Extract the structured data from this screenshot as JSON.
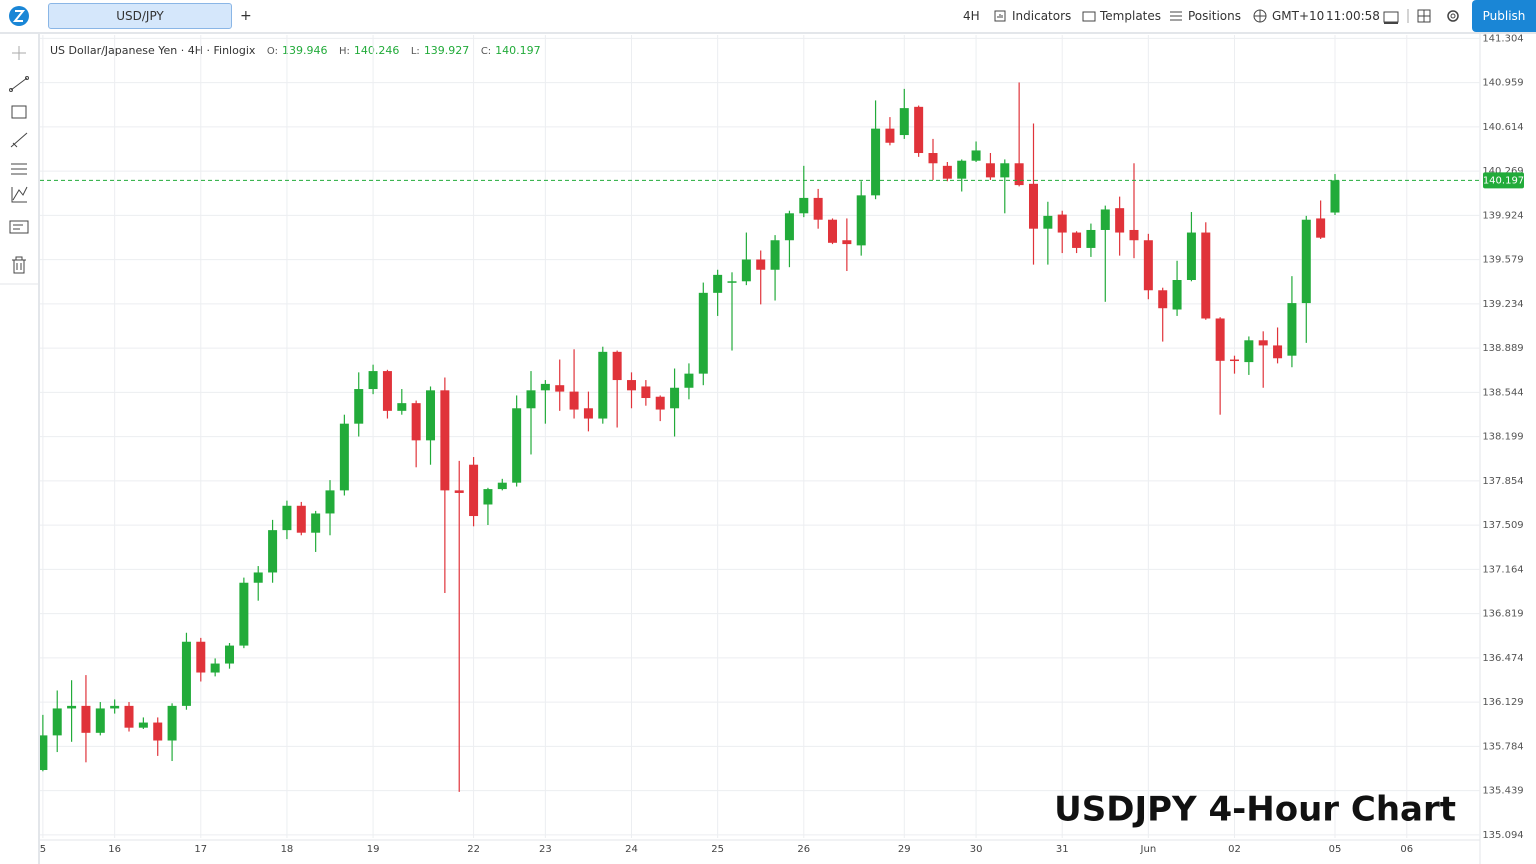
{
  "toolbar": {
    "tab": "USD/JPY",
    "add": "+",
    "interval": "4H",
    "indicators": "Indicators",
    "templates": "Templates",
    "positions": "Positions",
    "timezone": "GMT+10",
    "time": "11:00:58",
    "publish": "Publish"
  },
  "chart_data": {
    "type": "candlestick",
    "title": "US Dollar/Japanese Yen · 4H · Finlogix",
    "ohlc_labels": [
      "O:",
      "H:",
      "L:",
      "C:"
    ],
    "annotation": "USDJPY 4-Hour Chart",
    "up_color": "#22ab3a",
    "down_color": "#e0333a",
    "open": [
      135.6,
      135.87,
      136.08,
      136.1,
      135.89,
      136.08,
      136.1,
      135.93,
      135.97,
      135.83,
      136.1,
      136.6,
      136.36,
      136.43,
      136.57,
      137.06,
      137.14,
      137.47,
      137.66,
      137.45,
      137.6,
      137.78,
      138.3,
      138.57,
      138.71,
      138.4,
      138.46,
      138.17,
      138.56,
      137.78,
      137.98,
      137.67,
      137.79,
      137.84,
      138.42,
      138.56,
      138.6,
      138.55,
      138.42,
      138.34,
      138.86,
      138.64,
      138.59,
      138.51,
      138.42,
      138.58,
      138.69,
      139.32,
      139.4,
      139.41,
      139.58,
      139.5,
      139.73,
      139.94,
      140.06,
      139.89,
      139.73,
      139.69,
      140.08,
      140.6,
      140.55,
      140.77,
      140.41,
      140.31,
      140.21,
      140.35,
      140.33,
      140.22,
      140.33,
      140.17,
      139.82,
      139.93,
      139.79,
      139.67,
      139.81,
      139.98,
      139.81,
      139.73,
      139.34,
      139.19,
      139.42,
      139.79,
      139.12,
      138.8,
      138.78,
      138.95,
      138.91,
      138.83,
      139.24,
      139.9,
      139.946
    ],
    "high": [
      136.03,
      136.22,
      136.3,
      136.34,
      136.13,
      136.15,
      136.13,
      136.01,
      136.01,
      136.12,
      136.67,
      136.63,
      136.47,
      136.59,
      137.1,
      137.19,
      137.55,
      137.7,
      137.69,
      137.62,
      137.86,
      138.37,
      138.7,
      138.76,
      138.72,
      138.57,
      138.48,
      138.59,
      138.66,
      138.01,
      138.04,
      137.8,
      137.87,
      138.52,
      138.71,
      138.64,
      138.8,
      138.88,
      138.55,
      138.9,
      138.87,
      138.7,
      138.64,
      138.52,
      138.73,
      138.77,
      139.4,
      139.5,
      139.48,
      139.79,
      139.65,
      139.77,
      139.96,
      140.31,
      140.13,
      139.9,
      139.9,
      140.19,
      140.82,
      140.69,
      140.91,
      140.78,
      140.52,
      140.34,
      140.36,
      140.5,
      140.41,
      140.36,
      140.96,
      140.64,
      140.03,
      139.96,
      139.8,
      139.86,
      140.0,
      140.07,
      140.33,
      139.78,
      139.36,
      139.57,
      139.95,
      139.87,
      139.13,
      138.83,
      138.98,
      139.02,
      139.05,
      139.45,
      139.92,
      140.04,
      140.246
    ],
    "low": [
      135.59,
      135.74,
      135.82,
      135.66,
      135.87,
      136.04,
      135.9,
      135.92,
      135.71,
      135.67,
      136.07,
      136.29,
      136.33,
      136.39,
      136.55,
      136.92,
      137.06,
      137.4,
      137.43,
      137.3,
      137.43,
      137.74,
      138.2,
      138.53,
      138.34,
      138.37,
      137.96,
      137.98,
      136.98,
      135.43,
      137.5,
      137.51,
      137.78,
      137.81,
      138.06,
      138.3,
      138.4,
      138.34,
      138.24,
      138.3,
      138.27,
      138.42,
      138.44,
      138.32,
      138.2,
      138.49,
      138.6,
      139.14,
      138.87,
      139.38,
      139.23,
      139.26,
      139.52,
      139.91,
      139.82,
      139.7,
      139.49,
      139.61,
      140.05,
      140.47,
      140.52,
      140.38,
      140.2,
      140.19,
      140.11,
      140.34,
      140.2,
      139.94,
      140.15,
      139.54,
      139.54,
      139.63,
      139.63,
      139.6,
      139.25,
      139.61,
      139.59,
      139.27,
      138.94,
      139.14,
      139.41,
      139.11,
      138.37,
      138.69,
      138.68,
      138.58,
      138.77,
      138.74,
      138.93,
      139.74,
      139.927
    ],
    "close": [
      135.87,
      136.08,
      136.1,
      135.89,
      136.08,
      136.1,
      135.93,
      135.97,
      135.83,
      136.1,
      136.6,
      136.36,
      136.43,
      136.57,
      137.06,
      137.14,
      137.47,
      137.66,
      137.45,
      137.6,
      137.78,
      138.3,
      138.57,
      138.71,
      138.4,
      138.46,
      138.17,
      138.56,
      137.78,
      137.76,
      137.58,
      137.79,
      137.84,
      138.42,
      138.56,
      138.61,
      138.55,
      138.41,
      138.34,
      138.86,
      138.64,
      138.56,
      138.5,
      138.41,
      138.58,
      138.69,
      139.32,
      139.46,
      139.41,
      139.58,
      139.5,
      139.73,
      139.94,
      140.06,
      139.89,
      139.71,
      139.7,
      140.08,
      140.6,
      140.49,
      140.76,
      140.41,
      140.33,
      140.21,
      140.35,
      140.43,
      140.22,
      140.33,
      140.16,
      139.82,
      139.92,
      139.79,
      139.67,
      139.81,
      139.97,
      139.79,
      139.73,
      139.34,
      139.2,
      139.42,
      139.79,
      139.12,
      138.79,
      138.79,
      138.95,
      138.91,
      138.81,
      139.24,
      139.89,
      139.75,
      140.197
    ],
    "xlim": [
      -0.2,
      100.1
    ],
    "xticks": [
      {
        "value": 0,
        "label": "5"
      },
      {
        "value": 5,
        "label": "16"
      },
      {
        "value": 11,
        "label": "17"
      },
      {
        "value": 17,
        "label": "18"
      },
      {
        "value": 23,
        "label": "19"
      },
      {
        "value": 30,
        "label": "22"
      },
      {
        "value": 35,
        "label": "23"
      },
      {
        "value": 41,
        "label": "24"
      },
      {
        "value": 47,
        "label": "25"
      },
      {
        "value": 53,
        "label": "26"
      },
      {
        "value": 60,
        "label": "29"
      },
      {
        "value": 65,
        "label": "30"
      },
      {
        "value": 71,
        "label": "31"
      },
      {
        "value": 77,
        "label": "Jun"
      },
      {
        "value": 83,
        "label": "02"
      },
      {
        "value": 90,
        "label": "05"
      },
      {
        "value": 95,
        "label": "06"
      }
    ],
    "ylim": [
      135.07,
      141.33
    ],
    "yticks": [
      141.304,
      140.959,
      140.614,
      140.269,
      139.924,
      139.579,
      139.234,
      138.889,
      138.544,
      138.199,
      137.854,
      137.509,
      137.164,
      136.819,
      136.474,
      136.129,
      135.784,
      135.439,
      135.094
    ],
    "grid": true
  }
}
